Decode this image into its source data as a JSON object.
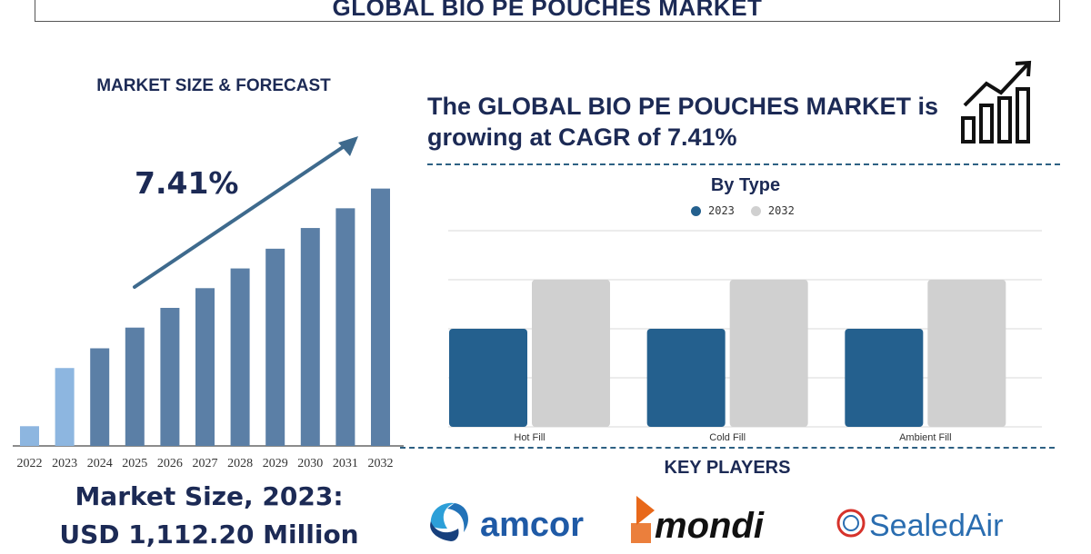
{
  "title": "GLOBAL BIO PE POUCHES MARKET",
  "left_heading": "MARKET SIZE & FORECAST",
  "cagr_label": "7.41%",
  "market_size_line1": "Market Size, 2023:",
  "market_size_line2": "USD 1,112.20 Million",
  "headline_line1": "The GLOBAL BIO PE POUCHES MARKET is",
  "headline_line2": "growing at CAGR of 7.41%",
  "by_type_title": "By Type",
  "key_players_title": "KEY PLAYERS",
  "players": [
    {
      "name": "amcor",
      "color": "#1f5aa6"
    },
    {
      "name": "mondi",
      "color": "#111111",
      "accent": "#e8681a"
    },
    {
      "name": "SealedAir",
      "color": "#2a6db0",
      "accent": "#d6322b"
    }
  ],
  "colors": {
    "navy": "#1c2a55",
    "bar_dark": "#5b7fa6",
    "bar_light": "#8db6e0",
    "series_2023": "#24608e",
    "series_2032": "#d0d0d0",
    "arrow": "#3e6a8d"
  },
  "icons": {
    "growth": "bar-chart-growth-icon"
  },
  "chart_data": [
    {
      "type": "bar",
      "categories": [
        "2022",
        "2023",
        "2024",
        "2025",
        "2026",
        "2027",
        "2028",
        "2029",
        "2030",
        "2031",
        "2032"
      ],
      "values": [
        1.0,
        3.95,
        4.95,
        6.0,
        7.0,
        8.0,
        9.0,
        10.0,
        11.05,
        12.05,
        13.05
      ],
      "highlight": [
        "2022",
        "2023"
      ],
      "annotation": "7.41%",
      "ylim": [
        0,
        14
      ]
    },
    {
      "type": "bar",
      "title": "By Type",
      "categories": [
        "Hot Fill",
        "Cold Fill",
        "Ambient Fill"
      ],
      "series": [
        {
          "name": "2023",
          "values": [
            2,
            2,
            2
          ]
        },
        {
          "name": "2032",
          "values": [
            3,
            3,
            3
          ]
        }
      ],
      "ylim": [
        0,
        4
      ],
      "grid": true,
      "legend": "top"
    }
  ]
}
